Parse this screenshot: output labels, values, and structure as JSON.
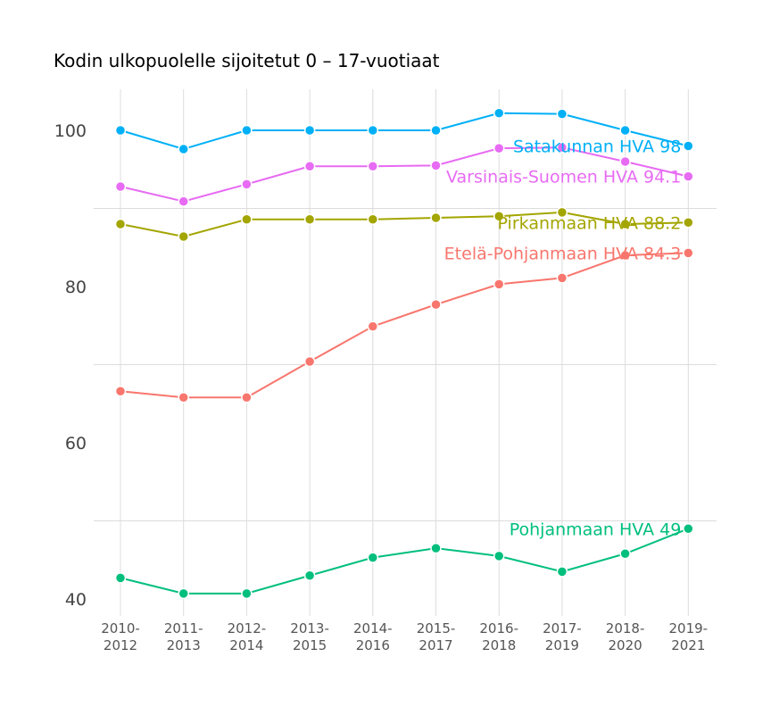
{
  "chart_data": {
    "type": "line",
    "title": "Kodin ulkopuolelle sijoitetut 0 – 17-vuotiaat",
    "xlabel": "",
    "ylabel": "",
    "categories": [
      "2010-\n2012",
      "2011-\n2013",
      "2012-\n2014",
      "2013-\n2015",
      "2014-\n2016",
      "2015-\n2017",
      "2016-\n2018",
      "2017-\n2019",
      "2018-\n2020",
      "2019-\n2021"
    ],
    "ylim": [
      38.5,
      105.5
    ],
    "yticks": [
      40,
      60,
      80,
      100
    ],
    "grid": true,
    "series": [
      {
        "name": "Satakunnan HVA",
        "label": "Satakunnan HVA 98",
        "color": "#00B0F6",
        "values": [
          100,
          97.6,
          100,
          100,
          100,
          100,
          102.2,
          102.1,
          100,
          98
        ]
      },
      {
        "name": "Varsinais-Suomen HVA",
        "label": "Varsinais-Suomen HVA 94.1",
        "color": "#E76BF3",
        "values": [
          92.8,
          90.9,
          93.1,
          95.4,
          95.4,
          95.5,
          97.7,
          97.8,
          96.0,
          94.1
        ]
      },
      {
        "name": "Pirkanmaan HVA",
        "label": "Pirkanmaan HVA 88.2",
        "color": "#A3A500",
        "values": [
          88.0,
          86.4,
          88.6,
          88.6,
          88.6,
          88.8,
          89.0,
          89.5,
          88.0,
          88.2
        ]
      },
      {
        "name": "Etelä-Pohjanmaan HVA",
        "label": "Etelä-Pohjanmaan HVA 84.3",
        "color": "#F8766D",
        "values": [
          66.6,
          65.8,
          65.8,
          70.4,
          74.9,
          77.7,
          80.3,
          81.1,
          84.0,
          84.3
        ]
      },
      {
        "name": "Pohjanmaan HVA",
        "label": "Pohjanmaan HVA 49",
        "color": "#00BF7D",
        "values": [
          42.7,
          40.7,
          40.7,
          43.0,
          45.3,
          46.5,
          45.5,
          43.5,
          45.8,
          49
        ]
      }
    ]
  }
}
